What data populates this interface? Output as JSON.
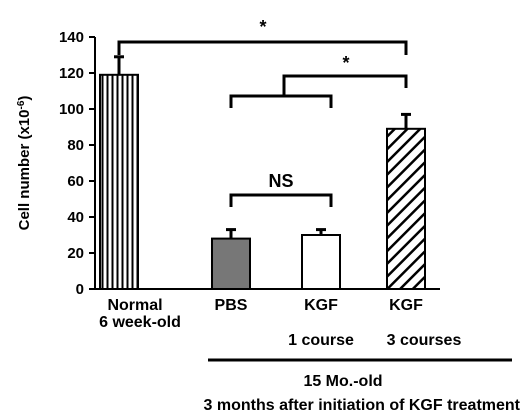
{
  "chart_data": {
    "type": "bar",
    "ylabel": "Cell number (x10",
    "ylabel_exponent": "-6",
    "ylabel_close": ")",
    "ylim": [
      0,
      140
    ],
    "yticks": [
      "0",
      "20",
      "40",
      "60",
      "80",
      "100",
      "120",
      "140"
    ],
    "grid": false,
    "categories": [
      {
        "line1": "Normal",
        "line2": "6 week-old"
      },
      {
        "line1": "PBS",
        "line2": ""
      },
      {
        "line1": "KGF",
        "line2": "1 course"
      },
      {
        "line1": "KGF",
        "line2": "3 courses"
      }
    ],
    "values": [
      119,
      28,
      30,
      89
    ],
    "errors": [
      10,
      5,
      3,
      8
    ],
    "patterns": [
      "vertical-stripes",
      "gray",
      "white",
      "diagonal-stripes"
    ],
    "colors": {
      "gray_fill": "#777777",
      "white_fill": "#ffffff",
      "stroke": "#000000"
    },
    "annotations": {
      "sig_top": "*",
      "sig_mid": "*",
      "ns": "NS"
    },
    "group_label_line1": "15 Mo.-old",
    "group_label_line2": "3 months after initiation of KGF treatment"
  }
}
